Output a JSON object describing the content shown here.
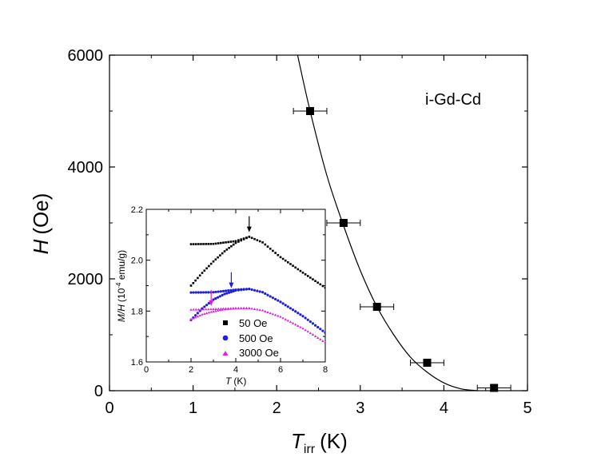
{
  "chart_data": [
    {
      "type": "scatter",
      "id": "main",
      "xlabel": "T",
      "xlabel_sub": "irr",
      "xlabel_unit": "(K)",
      "ylabel": "H",
      "ylabel_unit": "(Oe)",
      "xlim": [
        0,
        5
      ],
      "ylim": [
        0,
        6000
      ],
      "xticks": [
        0,
        1,
        2,
        3,
        4,
        5
      ],
      "xtick_labels": [
        "0",
        "1",
        "2",
        "3",
        "4",
        "5"
      ],
      "yticks": [
        0,
        2000,
        4000,
        6000
      ],
      "ytick_labels": [
        "0",
        "2000",
        "4000",
        "6000"
      ],
      "annotation": "i-Gd-Cd",
      "series": [
        {
          "name": "data",
          "marker": "square",
          "x": [
            2.4,
            2.8,
            3.2,
            3.8,
            4.6
          ],
          "y": [
            5000,
            3000,
            1500,
            500,
            50
          ],
          "xerr": [
            0.2,
            0.2,
            0.2,
            0.2,
            0.2
          ]
        }
      ],
      "fit": {
        "name": "fit curve",
        "x": [
          2.25,
          2.4,
          2.6,
          2.8,
          3.0,
          3.2,
          3.4,
          3.6,
          3.8,
          4.0,
          4.2,
          4.4
        ],
        "y": [
          6000,
          5000,
          3850,
          2950,
          2150,
          1500,
          1000,
          600,
          330,
          140,
          35,
          0
        ]
      }
    },
    {
      "type": "scatter",
      "id": "inset",
      "xlabel": "T",
      "xlabel_unit": "(K)",
      "ylabel": "M/H",
      "ylabel_unit": "(10",
      "ylabel_exp": "-4",
      "ylabel_tail": " emu/g)",
      "xlim": [
        0,
        8
      ],
      "ylim": [
        1.6,
        2.2
      ],
      "xticks": [
        0,
        2,
        4,
        6,
        8
      ],
      "xtick_labels": [
        "0",
        "2",
        "4",
        "6",
        "8"
      ],
      "yticks": [
        1.6,
        1.8,
        2.0,
        2.2
      ],
      "ytick_labels": [
        "1.6",
        "1.8",
        "2.0",
        "2.2"
      ],
      "series": [
        {
          "name": "50 Oe",
          "color": "#000000",
          "marker": "square",
          "fc": {
            "x": [
              2.0,
              3.0,
              4.0,
              4.6,
              5.2,
              6.0,
              7.0,
              8.0
            ],
            "y": [
              2.063,
              2.064,
              2.075,
              2.092,
              2.07,
              2.012,
              1.951,
              1.892
            ]
          },
          "zfc": {
            "x": [
              2.0,
              2.5,
              3.0,
              3.5,
              4.0,
              4.6
            ],
            "y": [
              1.9,
              1.95,
              1.995,
              2.035,
              2.068,
              2.092
            ]
          }
        },
        {
          "name": "500 Oe",
          "color": "#1f1fe0",
          "marker": "circle",
          "fc": {
            "x": [
              2.0,
              3.0,
              4.0,
              4.6,
              5.2,
              6.0,
              7.0,
              8.0
            ],
            "y": [
              1.873,
              1.874,
              1.884,
              1.887,
              1.874,
              1.836,
              1.78,
              1.715
            ]
          },
          "zfc": {
            "x": [
              2.0,
              2.5,
              3.0,
              3.5,
              4.0,
              4.6
            ],
            "y": [
              1.765,
              1.81,
              1.845,
              1.867,
              1.881,
              1.887
            ]
          }
        },
        {
          "name": "3000 Oe",
          "color": "#e020e0",
          "marker": "triangle",
          "fc": {
            "x": [
              2.0,
              3.0,
              4.0,
              4.6,
              5.2,
              6.0,
              7.0,
              8.0
            ],
            "y": [
              1.806,
              1.808,
              1.812,
              1.812,
              1.803,
              1.778,
              1.732,
              1.677
            ]
          },
          "zfc": {
            "x": [
              2.0,
              2.5,
              2.9,
              3.4,
              4.0,
              4.6
            ],
            "y": [
              1.768,
              1.787,
              1.797,
              1.806,
              1.811,
              1.812
            ]
          }
        }
      ],
      "arrows": [
        {
          "x": 4.6,
          "y": 2.11,
          "color": "#000000"
        },
        {
          "x": 3.8,
          "y": 1.89,
          "color": "#1f1fe0"
        },
        {
          "x": 2.9,
          "y": 1.82,
          "color": "#e020e0"
        }
      ]
    }
  ]
}
